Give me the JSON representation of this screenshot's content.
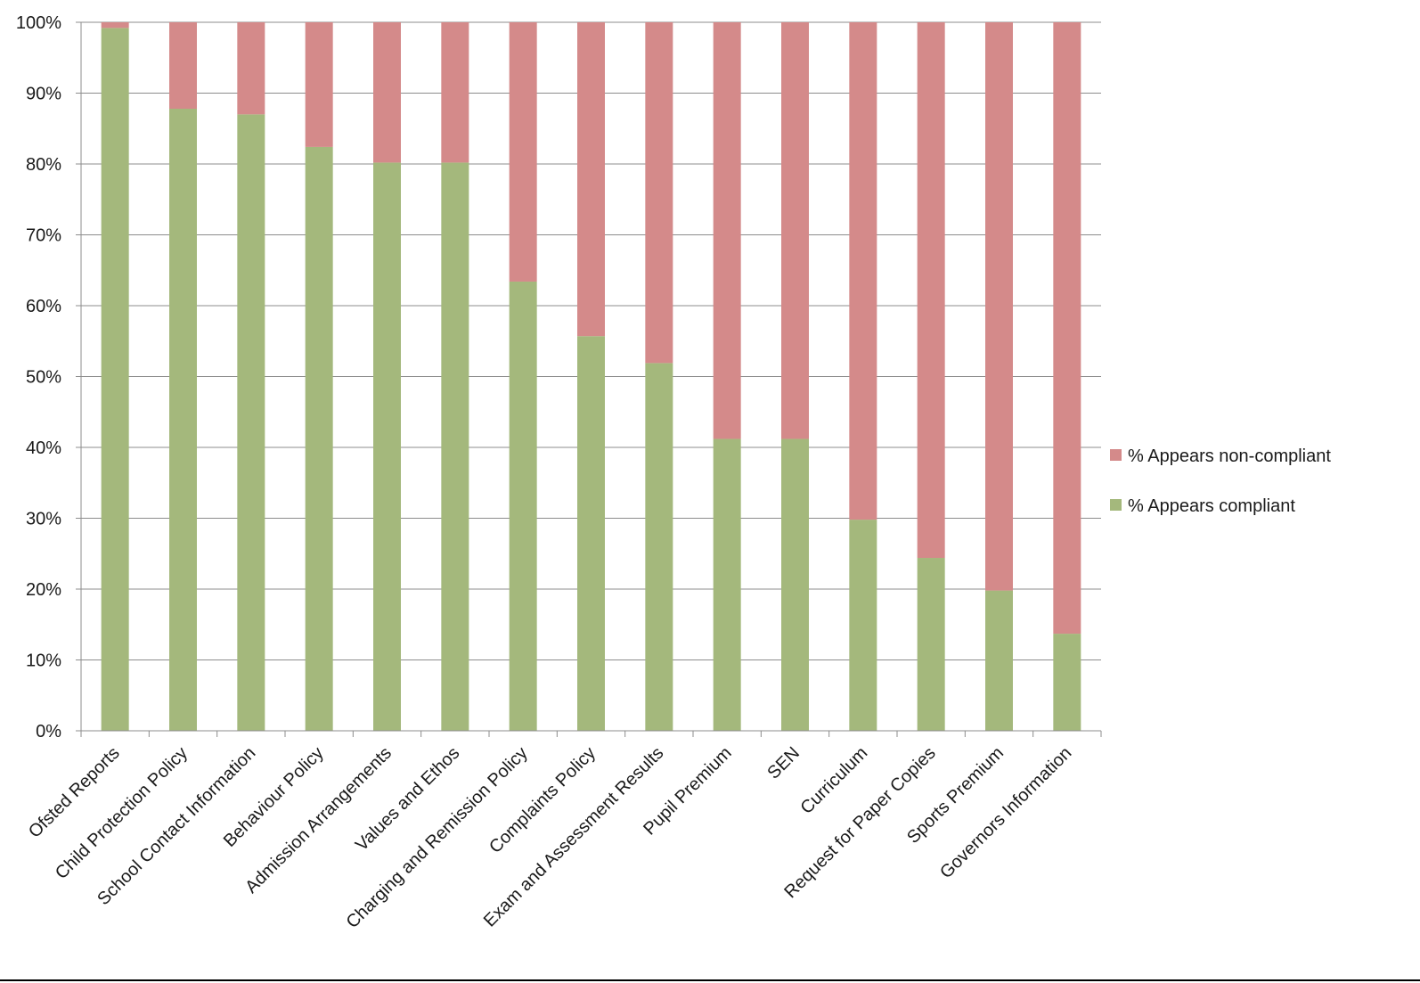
{
  "chart_data": {
    "type": "bar",
    "stacked": true,
    "percent_stacked": true,
    "categories": [
      "Ofsted Reports",
      "Child Protection Policy",
      "School Contact Information",
      "Behaviour Policy",
      "Admission Arrangements",
      "Values and Ethos",
      "Charging and Remission Policy",
      "Complaints Policy",
      "Exam and Assessment Results",
      "Pupil Premium",
      "SEN",
      "Curriculum",
      "Request for Paper Copies",
      "Sports Premium",
      "Governors Information"
    ],
    "series": [
      {
        "name": "% Appears compliant",
        "color": "#a4b87c",
        "values": [
          99.2,
          87.8,
          87.0,
          82.4,
          80.2,
          80.2,
          63.4,
          55.7,
          51.9,
          41.2,
          41.2,
          29.8,
          24.4,
          19.8,
          13.7
        ]
      },
      {
        "name": "% Appears non-compliant",
        "color": "#d48a8a",
        "values": [
          0.8,
          12.2,
          13.0,
          17.6,
          19.8,
          19.8,
          36.6,
          44.3,
          48.1,
          58.8,
          58.8,
          70.2,
          75.6,
          80.2,
          86.3
        ]
      }
    ],
    "yticks": [
      "0%",
      "10%",
      "20%",
      "30%",
      "40%",
      "50%",
      "60%",
      "70%",
      "80%",
      "90%",
      "100%"
    ],
    "ylim": [
      0,
      100
    ],
    "grid": true,
    "legend": {
      "position": "right",
      "order": [
        "% Appears non-compliant",
        "% Appears compliant"
      ]
    },
    "title": "",
    "xlabel": "",
    "ylabel": ""
  }
}
